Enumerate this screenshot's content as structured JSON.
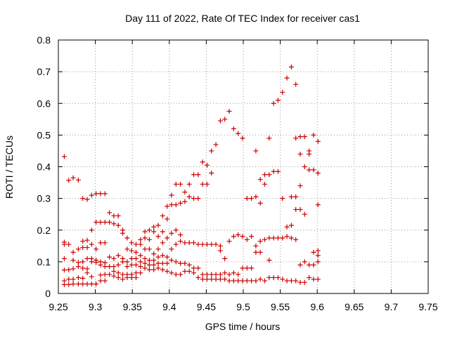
{
  "chart_data": {
    "type": "scatter",
    "title": "Day 111 of 2022, Rate Of TEC Index for receiver cas1",
    "xlabel": "GPS time / hours",
    "ylabel": "ROTI / TECUs",
    "xlim": [
      9.25,
      9.75
    ],
    "ylim": [
      0,
      0.8
    ],
    "x_ticks": [
      "9.25",
      "9.3",
      "9.35",
      "9.4",
      "9.45",
      "9.5",
      "9.55",
      "9.6",
      "9.65",
      "9.7",
      "9.75"
    ],
    "y_ticks": [
      "0",
      "0.1",
      "0.2",
      "0.3",
      "0.4",
      "0.5",
      "0.6",
      "0.7",
      "0.8"
    ],
    "x_tick_values": [
      9.25,
      9.3,
      9.35,
      9.4,
      9.45,
      9.5,
      9.55,
      9.6,
      9.65,
      9.7,
      9.75
    ],
    "y_tick_values": [
      0,
      0.1,
      0.2,
      0.3,
      0.4,
      0.5,
      0.6,
      0.7,
      0.8
    ],
    "grid": true,
    "marker": "plus",
    "color": "#cc0000",
    "points": [
      [
        9.258,
        0.432
      ],
      [
        9.258,
        0.162
      ],
      [
        9.258,
        0.155
      ],
      [
        9.258,
        0.11
      ],
      [
        9.258,
        0.074
      ],
      [
        9.258,
        0.04
      ],
      [
        9.258,
        0.028
      ],
      [
        9.264,
        0.357
      ],
      [
        9.264,
        0.155
      ],
      [
        9.264,
        0.075
      ],
      [
        9.264,
        0.045
      ],
      [
        9.264,
        0.028
      ],
      [
        9.27,
        0.365
      ],
      [
        9.27,
        0.13
      ],
      [
        9.27,
        0.105
      ],
      [
        9.27,
        0.078
      ],
      [
        9.27,
        0.045
      ],
      [
        9.27,
        0.03
      ],
      [
        9.277,
        0.358
      ],
      [
        9.277,
        0.14
      ],
      [
        9.277,
        0.098
      ],
      [
        9.277,
        0.085
      ],
      [
        9.277,
        0.05
      ],
      [
        9.277,
        0.03
      ],
      [
        9.283,
        0.3
      ],
      [
        9.283,
        0.165
      ],
      [
        9.283,
        0.145
      ],
      [
        9.283,
        0.1
      ],
      [
        9.283,
        0.08
      ],
      [
        9.283,
        0.048
      ],
      [
        9.283,
        0.03
      ],
      [
        9.289,
        0.297
      ],
      [
        9.289,
        0.168
      ],
      [
        9.289,
        0.145
      ],
      [
        9.289,
        0.11
      ],
      [
        9.289,
        0.078
      ],
      [
        9.289,
        0.065
      ],
      [
        9.289,
        0.03
      ],
      [
        9.295,
        0.31
      ],
      [
        9.295,
        0.2
      ],
      [
        9.295,
        0.155
      ],
      [
        9.295,
        0.11
      ],
      [
        9.295,
        0.1
      ],
      [
        9.295,
        0.053
      ],
      [
        9.295,
        0.03
      ],
      [
        9.301,
        0.315
      ],
      [
        9.301,
        0.225
      ],
      [
        9.301,
        0.14
      ],
      [
        9.301,
        0.105
      ],
      [
        9.301,
        0.098
      ],
      [
        9.301,
        0.03
      ],
      [
        9.307,
        0.315
      ],
      [
        9.307,
        0.225
      ],
      [
        9.307,
        0.16
      ],
      [
        9.307,
        0.1
      ],
      [
        9.307,
        0.09
      ],
      [
        9.307,
        0.058
      ],
      [
        9.307,
        0.04
      ],
      [
        9.313,
        0.315
      ],
      [
        9.313,
        0.225
      ],
      [
        9.313,
        0.16
      ],
      [
        9.313,
        0.097
      ],
      [
        9.313,
        0.085
      ],
      [
        9.313,
        0.06
      ],
      [
        9.313,
        0.04
      ],
      [
        9.319,
        0.255
      ],
      [
        9.319,
        0.225
      ],
      [
        9.319,
        0.115
      ],
      [
        9.319,
        0.085
      ],
      [
        9.319,
        0.06
      ],
      [
        9.325,
        0.245
      ],
      [
        9.325,
        0.22
      ],
      [
        9.325,
        0.11
      ],
      [
        9.325,
        0.085
      ],
      [
        9.325,
        0.07
      ],
      [
        9.325,
        0.055
      ],
      [
        9.331,
        0.245
      ],
      [
        9.331,
        0.215
      ],
      [
        9.331,
        0.12
      ],
      [
        9.331,
        0.09
      ],
      [
        9.331,
        0.065
      ],
      [
        9.331,
        0.05
      ],
      [
        9.337,
        0.2
      ],
      [
        9.337,
        0.19
      ],
      [
        9.337,
        0.11
      ],
      [
        9.337,
        0.1
      ],
      [
        9.337,
        0.06
      ],
      [
        9.337,
        0.045
      ],
      [
        9.343,
        0.175
      ],
      [
        9.343,
        0.14
      ],
      [
        9.343,
        0.1
      ],
      [
        9.343,
        0.085
      ],
      [
        9.343,
        0.06
      ],
      [
        9.343,
        0.05
      ],
      [
        9.349,
        0.16
      ],
      [
        9.349,
        0.135
      ],
      [
        9.349,
        0.11
      ],
      [
        9.349,
        0.09
      ],
      [
        9.349,
        0.06
      ],
      [
        9.349,
        0.05
      ],
      [
        9.355,
        0.155
      ],
      [
        9.355,
        0.13
      ],
      [
        9.355,
        0.11
      ],
      [
        9.355,
        0.09
      ],
      [
        9.355,
        0.065
      ],
      [
        9.355,
        0.05
      ],
      [
        9.361,
        0.17
      ],
      [
        9.361,
        0.155
      ],
      [
        9.361,
        0.12
      ],
      [
        9.361,
        0.1
      ],
      [
        9.361,
        0.085
      ],
      [
        9.361,
        0.065
      ],
      [
        9.367,
        0.195
      ],
      [
        9.367,
        0.175
      ],
      [
        9.367,
        0.14
      ],
      [
        9.367,
        0.11
      ],
      [
        9.367,
        0.095
      ],
      [
        9.367,
        0.08
      ],
      [
        9.373,
        0.2
      ],
      [
        9.373,
        0.17
      ],
      [
        9.373,
        0.14
      ],
      [
        9.373,
        0.105
      ],
      [
        9.373,
        0.09
      ],
      [
        9.373,
        0.075
      ],
      [
        9.379,
        0.21
      ],
      [
        9.379,
        0.195
      ],
      [
        9.379,
        0.125
      ],
      [
        9.379,
        0.105
      ],
      [
        9.379,
        0.09
      ],
      [
        9.379,
        0.075
      ],
      [
        9.385,
        0.215
      ],
      [
        9.385,
        0.18
      ],
      [
        9.385,
        0.14
      ],
      [
        9.385,
        0.115
      ],
      [
        9.385,
        0.095
      ],
      [
        9.385,
        0.08
      ],
      [
        9.391,
        0.245
      ],
      [
        9.391,
        0.195
      ],
      [
        9.391,
        0.16
      ],
      [
        9.391,
        0.12
      ],
      [
        9.391,
        0.095
      ],
      [
        9.391,
        0.075
      ],
      [
        9.397,
        0.275
      ],
      [
        9.397,
        0.235
      ],
      [
        9.397,
        0.175
      ],
      [
        9.397,
        0.115
      ],
      [
        9.397,
        0.095
      ],
      [
        9.397,
        0.07
      ],
      [
        9.403,
        0.31
      ],
      [
        9.403,
        0.28
      ],
      [
        9.403,
        0.19
      ],
      [
        9.403,
        0.14
      ],
      [
        9.403,
        0.105
      ],
      [
        9.403,
        0.065
      ],
      [
        9.409,
        0.345
      ],
      [
        9.409,
        0.28
      ],
      [
        9.409,
        0.2
      ],
      [
        9.409,
        0.155
      ],
      [
        9.409,
        0.1
      ],
      [
        9.409,
        0.06
      ],
      [
        9.415,
        0.345
      ],
      [
        9.415,
        0.285
      ],
      [
        9.415,
        0.185
      ],
      [
        9.415,
        0.165
      ],
      [
        9.415,
        0.095
      ],
      [
        9.415,
        0.06
      ],
      [
        9.421,
        0.32
      ],
      [
        9.421,
        0.29
      ],
      [
        9.421,
        0.16
      ],
      [
        9.421,
        0.095
      ],
      [
        9.421,
        0.07
      ],
      [
        9.427,
        0.345
      ],
      [
        9.427,
        0.305
      ],
      [
        9.427,
        0.16
      ],
      [
        9.427,
        0.09
      ],
      [
        9.427,
        0.07
      ],
      [
        9.433,
        0.375
      ],
      [
        9.433,
        0.3
      ],
      [
        9.433,
        0.16
      ],
      [
        9.433,
        0.08
      ],
      [
        9.433,
        0.065
      ],
      [
        9.439,
        0.375
      ],
      [
        9.439,
        0.3
      ],
      [
        9.439,
        0.155
      ],
      [
        9.439,
        0.08
      ],
      [
        9.439,
        0.05
      ],
      [
        9.445,
        0.415
      ],
      [
        9.445,
        0.345
      ],
      [
        9.445,
        0.155
      ],
      [
        9.445,
        0.06
      ],
      [
        9.445,
        0.045
      ],
      [
        9.451,
        0.405
      ],
      [
        9.451,
        0.345
      ],
      [
        9.451,
        0.155
      ],
      [
        9.451,
        0.06
      ],
      [
        9.451,
        0.045
      ],
      [
        9.457,
        0.45
      ],
      [
        9.457,
        0.38
      ],
      [
        9.457,
        0.155
      ],
      [
        9.457,
        0.06
      ],
      [
        9.457,
        0.045
      ],
      [
        9.463,
        0.47
      ],
      [
        9.463,
        0.155
      ],
      [
        9.463,
        0.06
      ],
      [
        9.463,
        0.045
      ],
      [
        9.469,
        0.545
      ],
      [
        9.469,
        0.15
      ],
      [
        9.469,
        0.135
      ],
      [
        9.469,
        0.06
      ],
      [
        9.469,
        0.045
      ],
      [
        9.475,
        0.55
      ],
      [
        9.475,
        0.11
      ],
      [
        9.475,
        0.065
      ],
      [
        9.475,
        0.045
      ],
      [
        9.481,
        0.575
      ],
      [
        9.481,
        0.165
      ],
      [
        9.481,
        0.06
      ],
      [
        9.481,
        0.04
      ],
      [
        9.487,
        0.52
      ],
      [
        9.487,
        0.18
      ],
      [
        9.487,
        0.065
      ],
      [
        9.487,
        0.04
      ],
      [
        9.493,
        0.505
      ],
      [
        9.493,
        0.185
      ],
      [
        9.493,
        0.06
      ],
      [
        9.493,
        0.04
      ],
      [
        9.499,
        0.49
      ],
      [
        9.499,
        0.18
      ],
      [
        9.499,
        0.08
      ],
      [
        9.499,
        0.04
      ],
      [
        9.505,
        0.3
      ],
      [
        9.505,
        0.17
      ],
      [
        9.505,
        0.08
      ],
      [
        9.505,
        0.04
      ],
      [
        9.511,
        0.3
      ],
      [
        9.511,
        0.18
      ],
      [
        9.511,
        0.08
      ],
      [
        9.511,
        0.04
      ],
      [
        9.517,
        0.45
      ],
      [
        9.517,
        0.305
      ],
      [
        9.517,
        0.15
      ],
      [
        9.517,
        0.13
      ],
      [
        9.517,
        0.04
      ],
      [
        9.523,
        0.36
      ],
      [
        9.523,
        0.285
      ],
      [
        9.523,
        0.165
      ],
      [
        9.523,
        0.13
      ],
      [
        9.523,
        0.045
      ],
      [
        9.529,
        0.375
      ],
      [
        9.529,
        0.345
      ],
      [
        9.529,
        0.17
      ],
      [
        9.529,
        0.04
      ],
      [
        9.535,
        0.49
      ],
      [
        9.535,
        0.375
      ],
      [
        9.535,
        0.175
      ],
      [
        9.535,
        0.105
      ],
      [
        9.535,
        0.05
      ],
      [
        9.541,
        0.6
      ],
      [
        9.541,
        0.385
      ],
      [
        9.541,
        0.175
      ],
      [
        9.541,
        0.05
      ],
      [
        9.547,
        0.61
      ],
      [
        9.547,
        0.385
      ],
      [
        9.547,
        0.175
      ],
      [
        9.547,
        0.05
      ],
      [
        9.553,
        0.635
      ],
      [
        9.553,
        0.3
      ],
      [
        9.553,
        0.175
      ],
      [
        9.553,
        0.045
      ],
      [
        9.559,
        0.68
      ],
      [
        9.559,
        0.21
      ],
      [
        9.559,
        0.18
      ],
      [
        9.559,
        0.04
      ],
      [
        9.565,
        0.715
      ],
      [
        9.565,
        0.305
      ],
      [
        9.565,
        0.215
      ],
      [
        9.565,
        0.175
      ],
      [
        9.565,
        0.04
      ],
      [
        9.571,
        0.66
      ],
      [
        9.571,
        0.49
      ],
      [
        9.571,
        0.305
      ],
      [
        9.571,
        0.265
      ],
      [
        9.571,
        0.17
      ],
      [
        9.571,
        0.04
      ],
      [
        9.577,
        0.495
      ],
      [
        9.577,
        0.44
      ],
      [
        9.577,
        0.34
      ],
      [
        9.577,
        0.265
      ],
      [
        9.577,
        0.09
      ],
      [
        9.577,
        0.035
      ],
      [
        9.583,
        0.495
      ],
      [
        9.583,
        0.4
      ],
      [
        9.583,
        0.25
      ],
      [
        9.583,
        0.1
      ],
      [
        9.583,
        0.035
      ],
      [
        9.589,
        0.45
      ],
      [
        9.589,
        0.44
      ],
      [
        9.589,
        0.39
      ],
      [
        9.589,
        0.09
      ],
      [
        9.589,
        0.05
      ],
      [
        9.595,
        0.5
      ],
      [
        9.595,
        0.39
      ],
      [
        9.595,
        0.13
      ],
      [
        9.595,
        0.09
      ],
      [
        9.595,
        0.045
      ],
      [
        9.601,
        0.48
      ],
      [
        9.601,
        0.38
      ],
      [
        9.601,
        0.28
      ],
      [
        9.601,
        0.135
      ],
      [
        9.601,
        0.12
      ],
      [
        9.601,
        0.1
      ],
      [
        9.601,
        0.045
      ]
    ]
  }
}
